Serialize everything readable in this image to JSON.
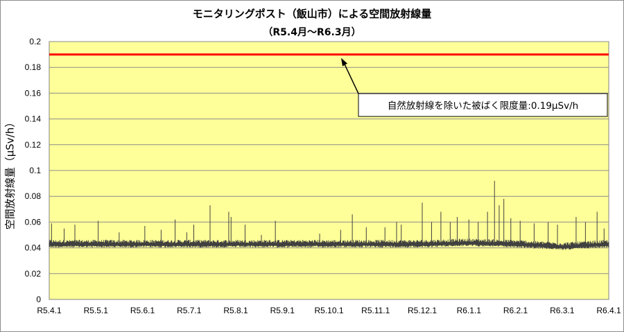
{
  "chart_data": {
    "type": "line",
    "title": "モニタリングポスト（飯山市）による空間放射線量",
    "subtitle": "（R5.4月～R6.3月）",
    "ylabel": "空間放射線量（μSv/h）",
    "xlabel": "",
    "ylim": [
      0,
      0.2
    ],
    "yticks": [
      "0",
      "0.02",
      "0.04",
      "0.06",
      "0.08",
      "0.1",
      "0.12",
      "0.14",
      "0.16",
      "0.18",
      "0.2"
    ],
    "x_ticks": [
      "R5.4.1",
      "R5.5.1",
      "R5.6.1",
      "R5.7.1",
      "R5.8.1",
      "R5.9.1",
      "R5.10.1",
      "R5.11.1",
      "R5.12.1",
      "R6.1.1",
      "R6.2.1",
      "R6.3.1",
      "R6.4.1"
    ],
    "grid": true,
    "plot_background": "#ffff99",
    "reference_line": {
      "value": 0.19,
      "color": "#ff0000",
      "label": "自然放射線を除いた被ばく限度量:0.19μSv/h"
    },
    "series": [
      {
        "color": "#404040",
        "baseline": [
          0.043,
          0.043,
          0.043,
          0.043,
          0.043,
          0.043,
          0.043,
          0.043,
          0.043,
          0.044,
          0.043,
          0.041,
          0.043
        ],
        "spikes": [
          {
            "x": 0.05,
            "y": 0.059
          },
          {
            "x": 0.32,
            "y": 0.055
          },
          {
            "x": 0.55,
            "y": 0.058
          },
          {
            "x": 1.05,
            "y": 0.061
          },
          {
            "x": 1.5,
            "y": 0.052
          },
          {
            "x": 2.05,
            "y": 0.057
          },
          {
            "x": 2.4,
            "y": 0.054
          },
          {
            "x": 2.7,
            "y": 0.062
          },
          {
            "x": 2.95,
            "y": 0.052
          },
          {
            "x": 3.1,
            "y": 0.058
          },
          {
            "x": 3.45,
            "y": 0.073
          },
          {
            "x": 3.85,
            "y": 0.068
          },
          {
            "x": 3.9,
            "y": 0.064
          },
          {
            "x": 4.2,
            "y": 0.058
          },
          {
            "x": 4.55,
            "y": 0.05
          },
          {
            "x": 4.85,
            "y": 0.061
          },
          {
            "x": 5.8,
            "y": 0.051
          },
          {
            "x": 6.25,
            "y": 0.054
          },
          {
            "x": 6.5,
            "y": 0.066
          },
          {
            "x": 6.8,
            "y": 0.056
          },
          {
            "x": 7.2,
            "y": 0.056
          },
          {
            "x": 7.45,
            "y": 0.06
          },
          {
            "x": 7.55,
            "y": 0.058
          },
          {
            "x": 8.0,
            "y": 0.075
          },
          {
            "x": 8.2,
            "y": 0.06
          },
          {
            "x": 8.4,
            "y": 0.068
          },
          {
            "x": 8.6,
            "y": 0.06
          },
          {
            "x": 8.75,
            "y": 0.064
          },
          {
            "x": 9.0,
            "y": 0.062
          },
          {
            "x": 9.2,
            "y": 0.06
          },
          {
            "x": 9.4,
            "y": 0.068
          },
          {
            "x": 9.55,
            "y": 0.092
          },
          {
            "x": 9.65,
            "y": 0.073
          },
          {
            "x": 9.75,
            "y": 0.078
          },
          {
            "x": 9.9,
            "y": 0.063
          },
          {
            "x": 10.1,
            "y": 0.061
          },
          {
            "x": 10.4,
            "y": 0.059
          },
          {
            "x": 10.7,
            "y": 0.06
          },
          {
            "x": 10.9,
            "y": 0.058
          },
          {
            "x": 11.3,
            "y": 0.064
          },
          {
            "x": 11.5,
            "y": 0.06
          },
          {
            "x": 11.75,
            "y": 0.068
          },
          {
            "x": 11.9,
            "y": 0.055
          }
        ]
      }
    ]
  }
}
